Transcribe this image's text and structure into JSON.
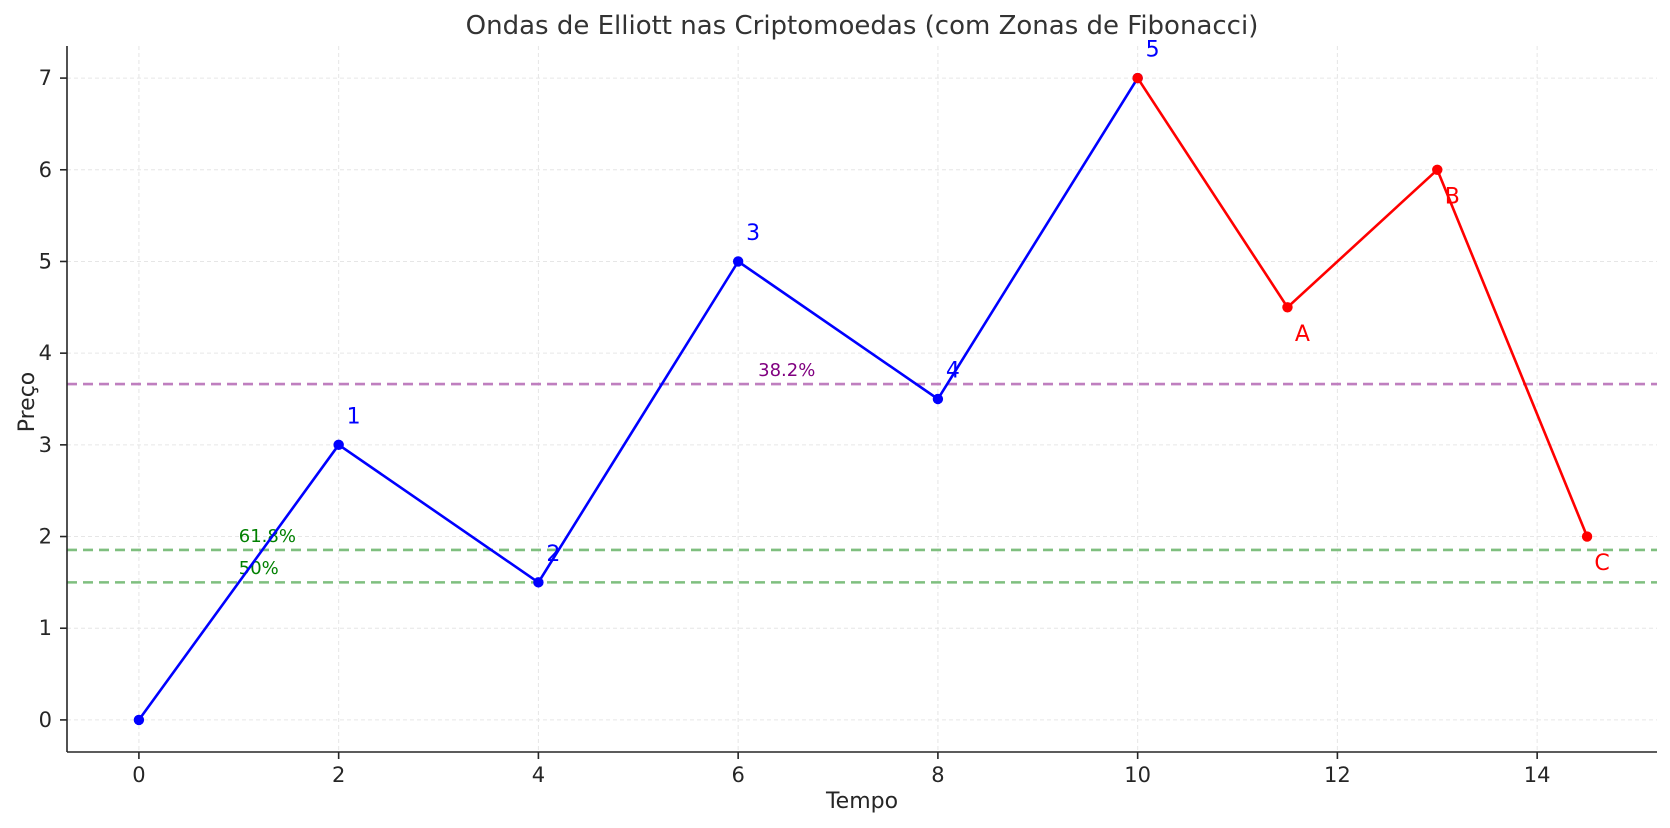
{
  "chart_data": {
    "type": "line",
    "title": "Ondas de Elliott nas Criptomoedas (com Zonas de Fibonacci)",
    "xlabel": "Tempo",
    "ylabel": "Preço",
    "xlim": [
      -0.72,
      15.2
    ],
    "ylim": [
      -0.35,
      7.35
    ],
    "xticks": [
      0,
      2,
      4,
      6,
      8,
      10,
      12,
      14
    ],
    "yticks": [
      0,
      1,
      2,
      3,
      4,
      5,
      6,
      7
    ],
    "grid": true,
    "series": [
      {
        "color": "#0000ff",
        "x": [
          0,
          2,
          4,
          6,
          8,
          10
        ],
        "y": [
          0,
          3,
          1.5,
          5,
          3.5,
          7
        ],
        "point_labels": [
          "",
          "1",
          "2",
          "3",
          "4",
          "5"
        ]
      },
      {
        "color": "#ff0000",
        "x": [
          10,
          11.5,
          13,
          14.5
        ],
        "y": [
          7,
          4.5,
          6,
          2
        ],
        "point_labels": [
          "",
          "A",
          "B",
          "C"
        ]
      }
    ],
    "fibonacci_levels": [
      {
        "label": "38.2%",
        "y": 3.663,
        "color": "#bf7fbf",
        "label_color": "#800080",
        "label_x": 6.2,
        "label_y": 3.75
      },
      {
        "label": "61.8%",
        "y": 1.854,
        "color": "#7fbf7f",
        "label_color": "#008000",
        "label_x": 1.0,
        "label_y": 1.94
      },
      {
        "label": "50%",
        "y": 1.5,
        "color": "#7fbf7f",
        "label_color": "#008000",
        "label_x": 1.0,
        "label_y": 1.59
      }
    ]
  }
}
